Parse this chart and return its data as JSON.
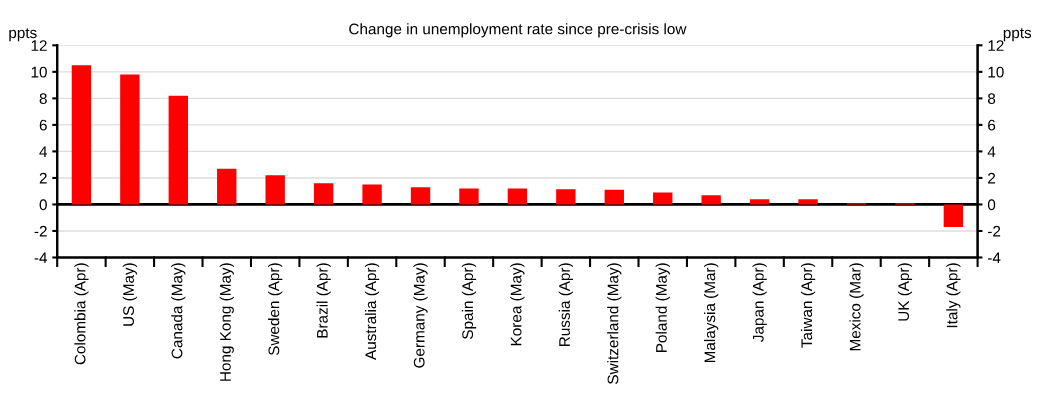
{
  "chart_data": {
    "type": "bar",
    "title": "Change in unemployment rate since pre-crisis low",
    "ylabel": "ppts",
    "y2label": "ppts",
    "categories": [
      "Colombia (Apr)",
      "US (May)",
      "Canada (May)",
      "Hong Kong (May)",
      "Sweden (Apr)",
      "Brazil (Apr)",
      "Australia (Apr)",
      "Germany (May)",
      "Spain (Apr)",
      "Korea (May)",
      "Russia (Apr)",
      "Switzerland (May)",
      "Poland (May)",
      "Malaysia (Mar)",
      "Japan (Apr)",
      "Taiwan (Apr)",
      "Mexico (Mar)",
      "UK (Apr)",
      "Italy (Apr)"
    ],
    "values": [
      10.5,
      9.8,
      8.2,
      2.7,
      2.2,
      1.6,
      1.5,
      1.3,
      1.2,
      1.2,
      1.15,
      1.1,
      0.9,
      0.7,
      0.4,
      0.4,
      0.1,
      0.1,
      -1.7
    ],
    "color": "#ff0000",
    "ylim": [
      -4,
      12
    ],
    "yticks": [
      -4,
      -2,
      0,
      2,
      4,
      6,
      8,
      10,
      12
    ],
    "y2lim": [
      -4,
      12
    ],
    "y2ticks": [
      -4,
      -2,
      0,
      2,
      4,
      6,
      8,
      10,
      12
    ],
    "ref_lines": [
      {
        "axis": "y",
        "value": 0,
        "color": "#000000"
      }
    ],
    "grid": "y",
    "legend": false
  }
}
